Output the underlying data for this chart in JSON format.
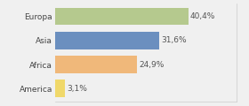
{
  "categories": [
    "Europa",
    "Asia",
    "Africa",
    "America"
  ],
  "values": [
    40.4,
    31.6,
    24.9,
    3.1
  ],
  "labels": [
    "40,4%",
    "31,6%",
    "24,9%",
    "3,1%"
  ],
  "bar_colors": [
    "#b5c98e",
    "#6b8fbf",
    "#f0b87a",
    "#f0d86a"
  ],
  "background_color": "#f0f0f0",
  "xlim": [
    0,
    55
  ],
  "bar_height": 0.72,
  "label_fontsize": 6.5,
  "tick_fontsize": 6.5,
  "figsize": [
    2.8,
    1.2
  ],
  "dpi": 100
}
